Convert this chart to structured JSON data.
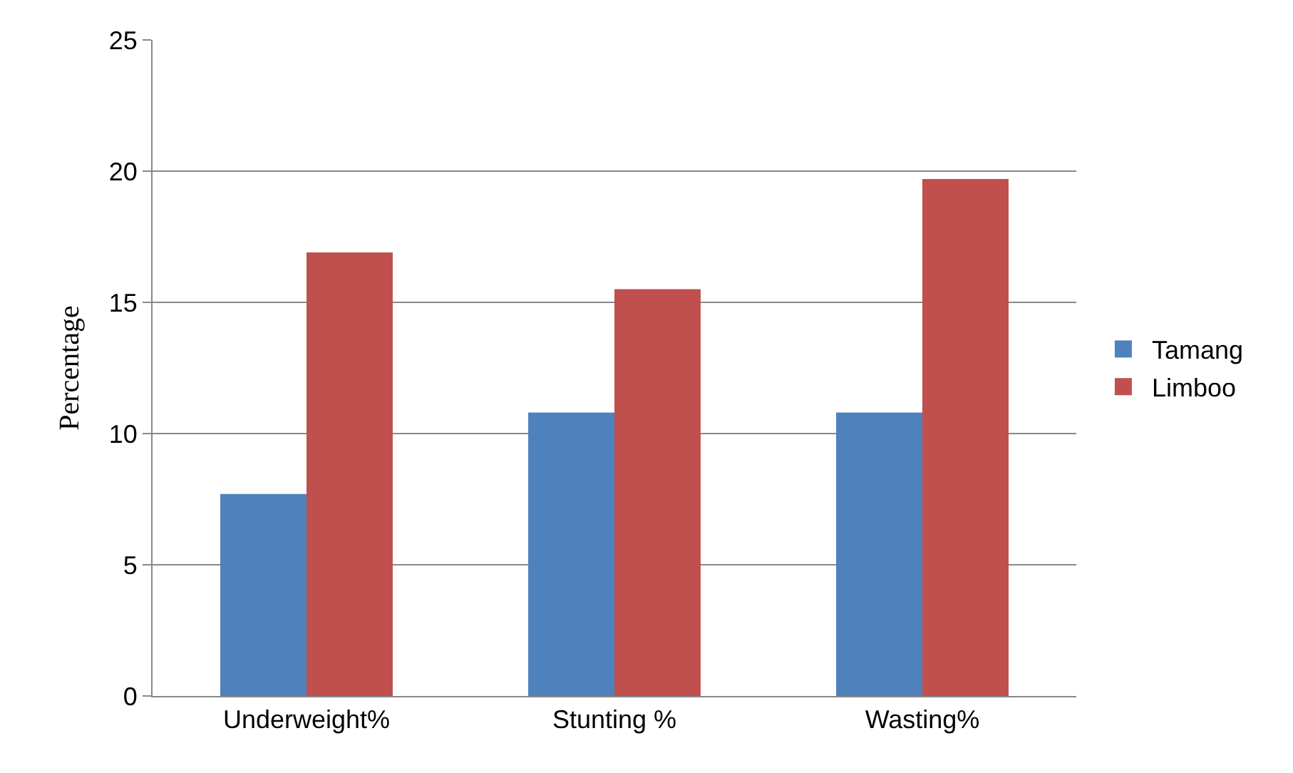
{
  "chart_data": {
    "type": "bar",
    "ylabel": "Percentage",
    "categories": [
      "Underweight%",
      "Stunting %",
      "Wasting%"
    ],
    "series": [
      {
        "name": "Tamang",
        "color": "#4f81bd",
        "values": [
          7.7,
          10.8,
          10.8
        ]
      },
      {
        "name": "Limboo",
        "color": "#c0504d",
        "values": [
          16.9,
          15.5,
          19.7
        ]
      }
    ],
    "ylim": [
      0,
      25
    ],
    "yticks": [
      0,
      5,
      10,
      15,
      20,
      25
    ],
    "grid": "y",
    "legend": "right"
  }
}
